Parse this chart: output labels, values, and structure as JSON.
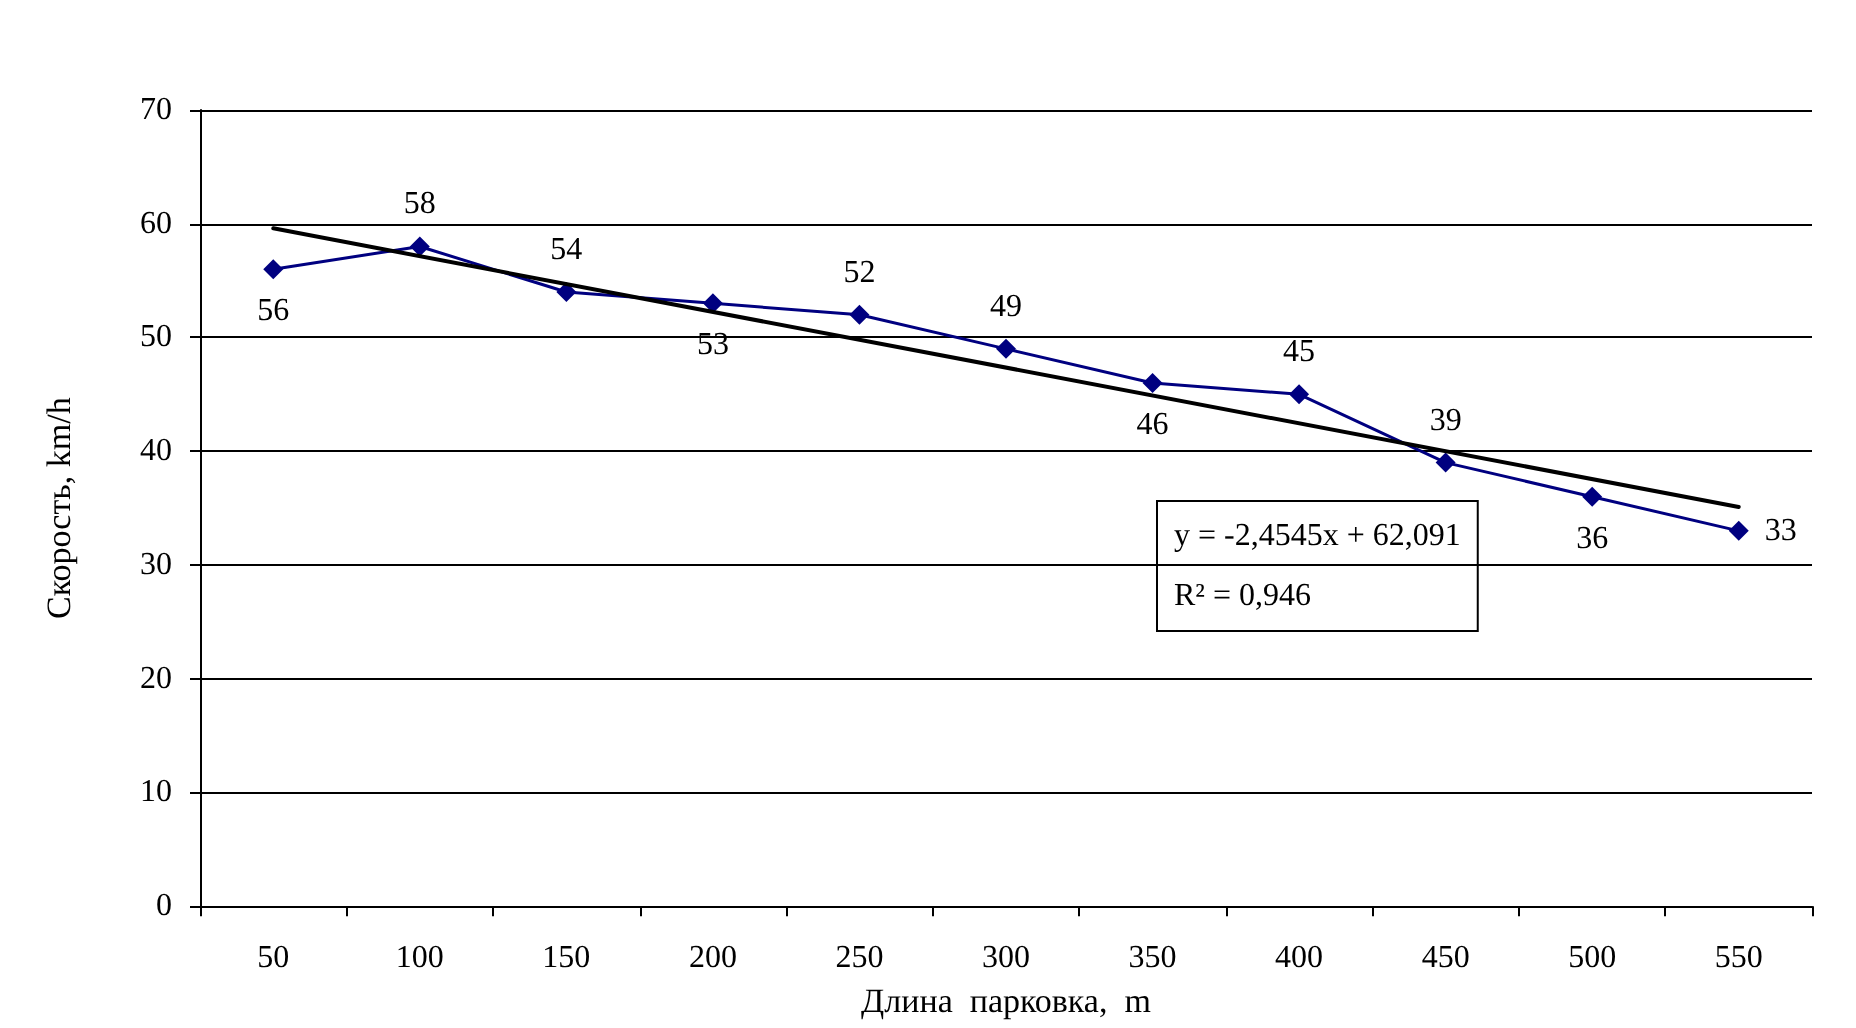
{
  "chart_data": {
    "type": "line",
    "xlabel": "Длина  парковка,  m",
    "ylabel": "Скорость, km/h",
    "categories": [
      "50",
      "100",
      "150",
      "200",
      "250",
      "300",
      "350",
      "400",
      "450",
      "500",
      "550"
    ],
    "series": [
      {
        "color": "#000080",
        "values": [
          56,
          58,
          54,
          53,
          52,
          49,
          46,
          45,
          39,
          36,
          33
        ],
        "value_labels": [
          "56",
          "58",
          "54",
          "53",
          "52",
          "49",
          "46",
          "45",
          "39",
          "36",
          "33"
        ]
      },
      {
        "type": "line",
        "color": "#000000",
        "x": [
          "50",
          "550"
        ],
        "values": [
          59.6,
          35.1
        ],
        "marker": "none"
      }
    ],
    "ylim": [
      0,
      70
    ],
    "yticks": [
      0,
      10,
      20,
      30,
      40,
      50,
      60,
      70
    ],
    "annotations": [
      "y = -2,4545x + 62,091",
      "R² = 0,946"
    ],
    "grid": "y",
    "marker": "diamond",
    "line_style": "solid"
  }
}
